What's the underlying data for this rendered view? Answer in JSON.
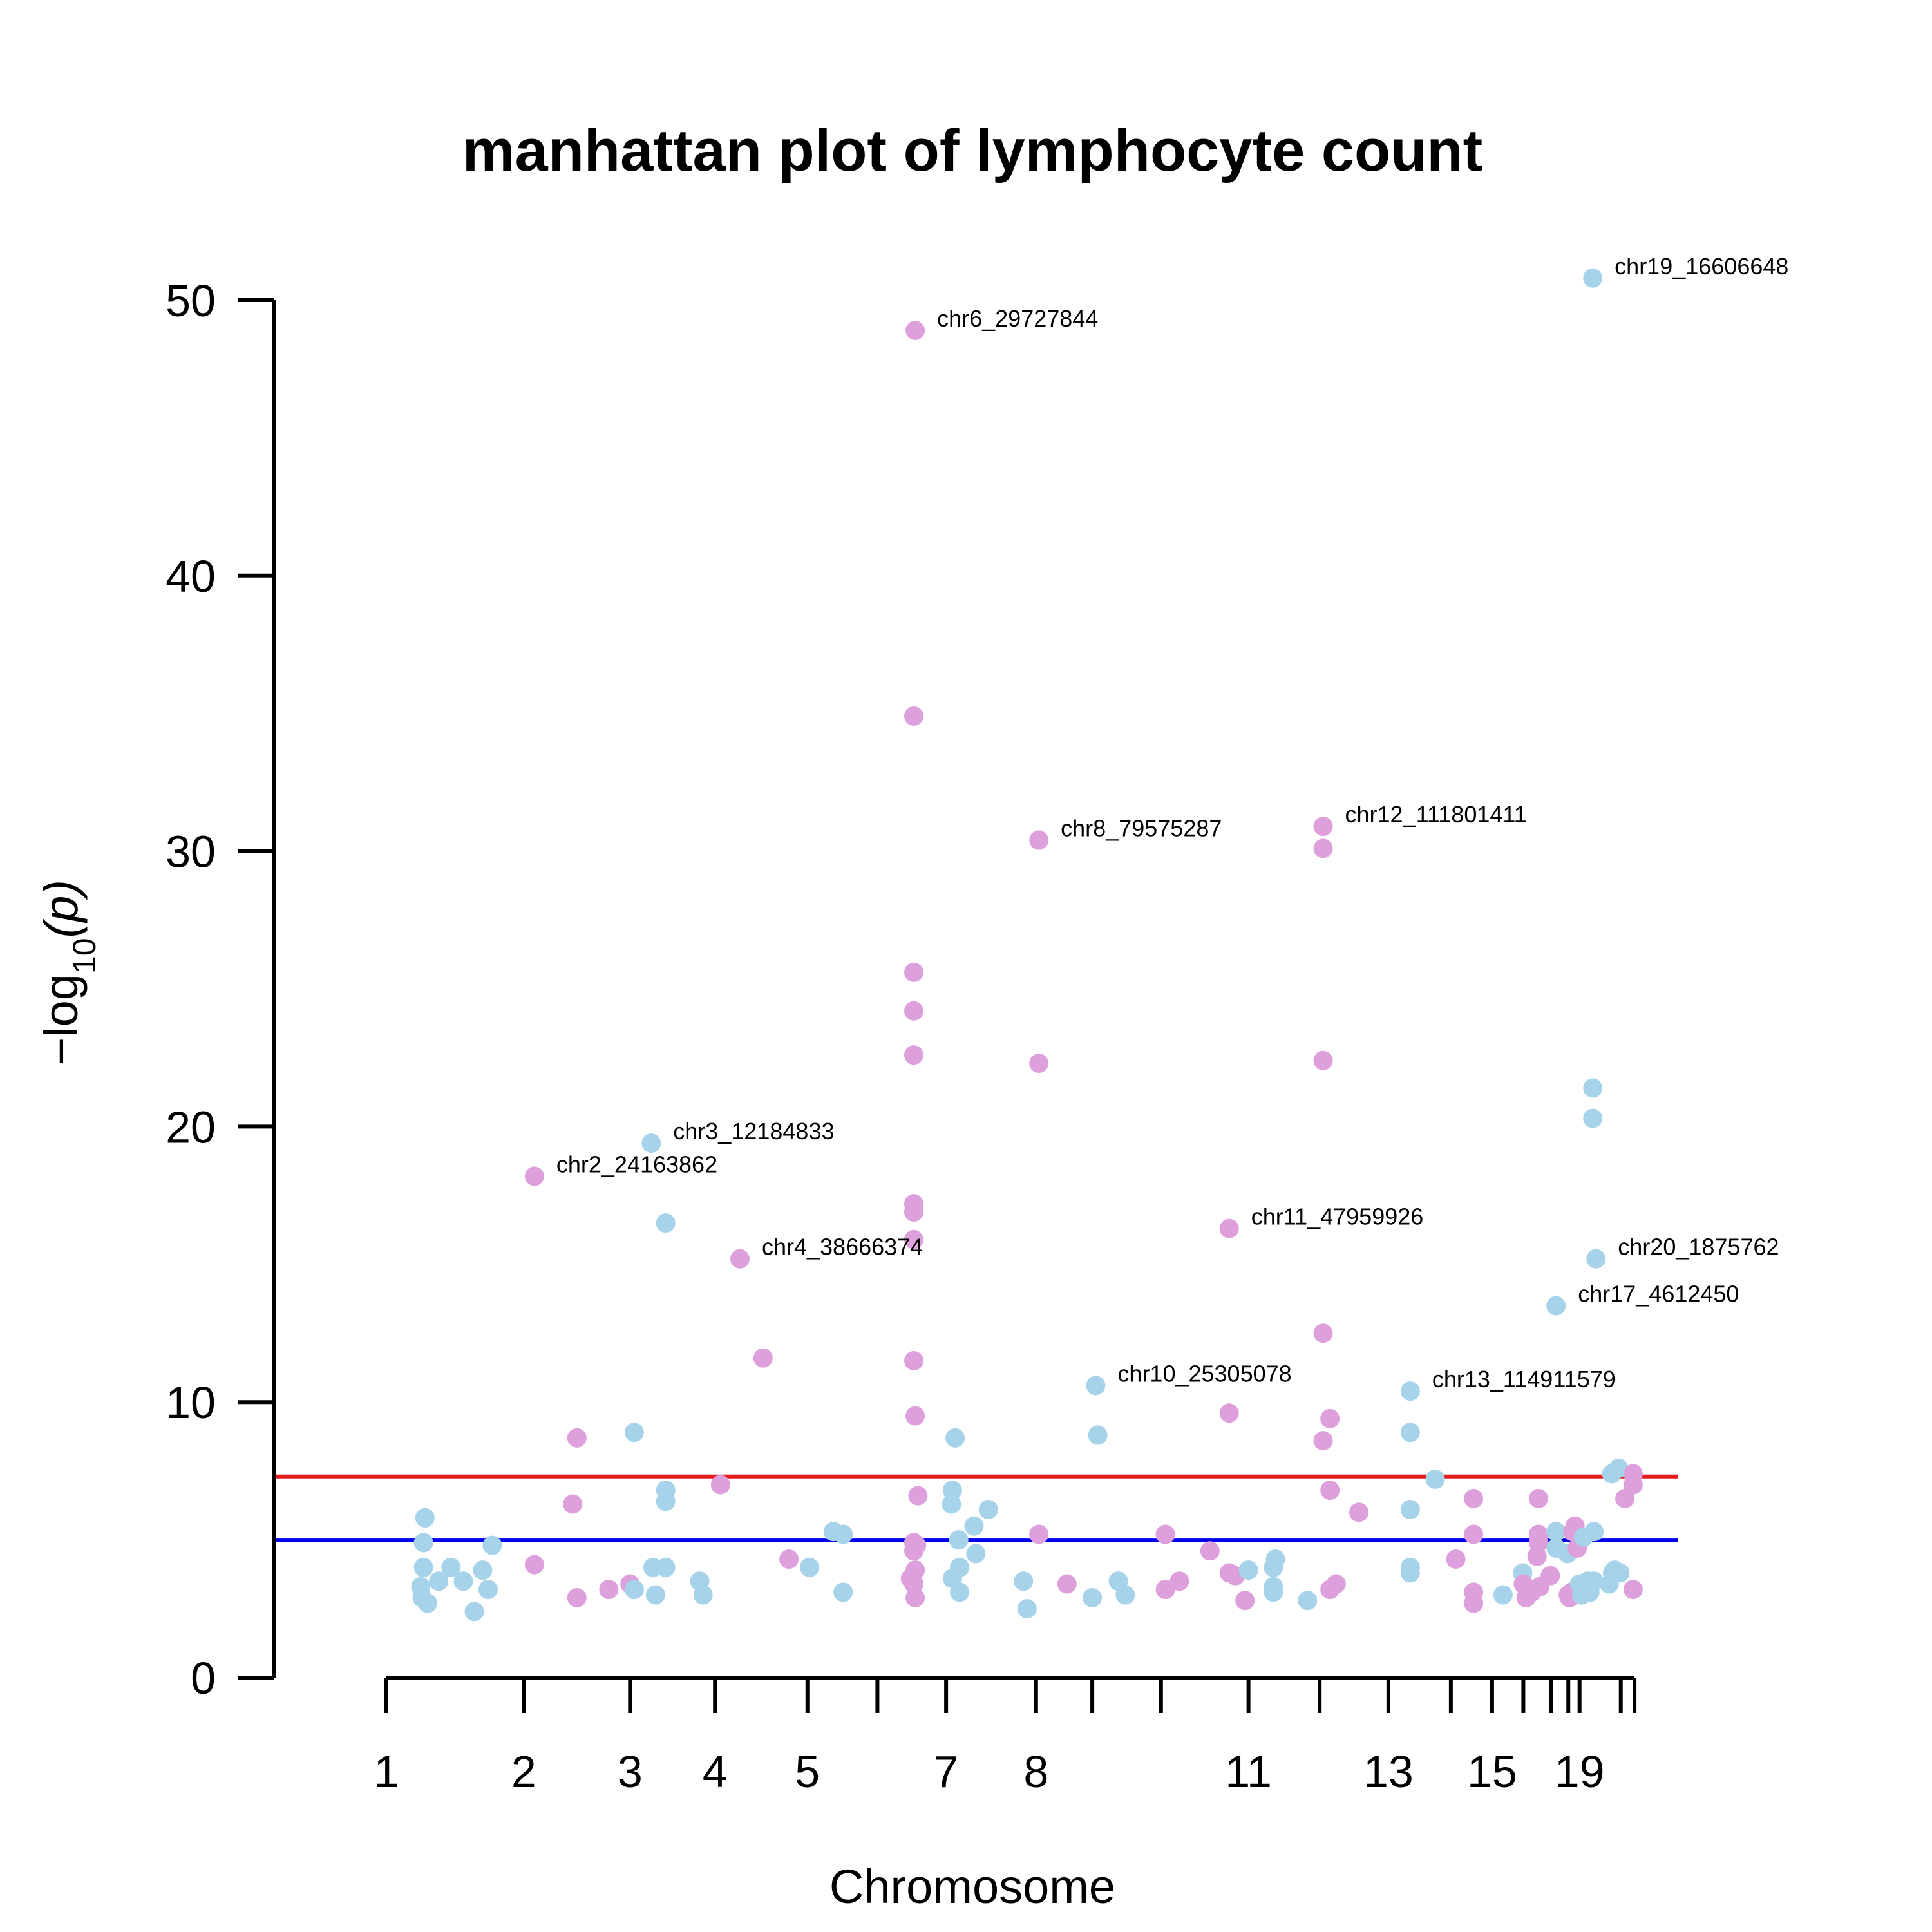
{
  "chart_data": {
    "type": "scatter",
    "title": "manhattan plot of lymphocyte count",
    "xlabel": "Chromosome",
    "ylabel": "−log10(p)",
    "ylabel_parts": {
      "prefix": "−log",
      "subscript": "10",
      "suffix": "(p)"
    },
    "ylim": [
      0,
      50
    ],
    "yticks": [
      0,
      10,
      20,
      30,
      40,
      50
    ],
    "x_tick_labels": [
      "1",
      "2",
      "3",
      "4",
      "5",
      "7",
      "8",
      "11",
      "13",
      "15",
      "19"
    ],
    "colors": {
      "odd": "#a6d3ea",
      "even": "#dda0dd",
      "genomewide_line": "#e41a1c",
      "suggestive_line": "#0000ee"
    },
    "thresholds": {
      "genomewide": 7.3,
      "suggestive": 5
    },
    "chromosomes": [
      {
        "chr": 1,
        "start": 0.0,
        "end": 0.11,
        "tick_label": "1"
      },
      {
        "chr": 2,
        "start": 0.11,
        "end": 0.195,
        "tick_label": "2"
      },
      {
        "chr": 3,
        "start": 0.195,
        "end": 0.263,
        "tick_label": "3"
      },
      {
        "chr": 4,
        "start": 0.263,
        "end": 0.337,
        "tick_label": "4"
      },
      {
        "chr": 5,
        "start": 0.337,
        "end": 0.393,
        "tick_label": "5"
      },
      {
        "chr": 6,
        "start": 0.393,
        "end": 0.448,
        "tick_label": ""
      },
      {
        "chr": 7,
        "start": 0.448,
        "end": 0.52,
        "tick_label": "7"
      },
      {
        "chr": 8,
        "start": 0.52,
        "end": 0.565,
        "tick_label": "8"
      },
      {
        "chr": 9,
        "start": 0.565,
        "end": 0.62,
        "tick_label": ""
      },
      {
        "chr": 10,
        "start": 0.62,
        "end": 0.69,
        "tick_label": ""
      },
      {
        "chr": 11,
        "start": 0.69,
        "end": 0.747,
        "tick_label": "11"
      },
      {
        "chr": 12,
        "start": 0.747,
        "end": 0.802,
        "tick_label": ""
      },
      {
        "chr": 13,
        "start": 0.802,
        "end": 0.852,
        "tick_label": "13"
      },
      {
        "chr": 14,
        "start": 0.852,
        "end": 0.885,
        "tick_label": ""
      },
      {
        "chr": 15,
        "start": 0.885,
        "end": 0.91,
        "tick_label": "15"
      },
      {
        "chr": 16,
        "start": 0.91,
        "end": 0.932,
        "tick_label": ""
      },
      {
        "chr": 17,
        "start": 0.932,
        "end": 0.946,
        "tick_label": ""
      },
      {
        "chr": 18,
        "start": 0.946,
        "end": 0.955,
        "tick_label": ""
      },
      {
        "chr": 19,
        "start": 0.955,
        "end": 0.988,
        "tick_label": "19"
      },
      {
        "chr": 20,
        "start": 0.988,
        "end": 0.999,
        "tick_label": ""
      }
    ],
    "points": [
      {
        "chr": 1,
        "pos": 0.28,
        "p": 5.8
      },
      {
        "chr": 1,
        "pos": 0.27,
        "p": 4.9
      },
      {
        "chr": 1,
        "pos": 0.27,
        "p": 4.0
      },
      {
        "chr": 1,
        "pos": 0.25,
        "p": 3.3
      },
      {
        "chr": 1,
        "pos": 0.26,
        "p": 2.9
      },
      {
        "chr": 1,
        "pos": 0.3,
        "p": 2.7
      },
      {
        "chr": 1,
        "pos": 0.38,
        "p": 3.5
      },
      {
        "chr": 1,
        "pos": 0.47,
        "p": 4.0
      },
      {
        "chr": 1,
        "pos": 0.56,
        "p": 3.5
      },
      {
        "chr": 1,
        "pos": 0.64,
        "p": 2.4
      },
      {
        "chr": 1,
        "pos": 0.7,
        "p": 3.9
      },
      {
        "chr": 1,
        "pos": 0.74,
        "p": 3.2
      },
      {
        "chr": 1,
        "pos": 0.77,
        "p": 4.8
      },
      {
        "chr": 2,
        "pos": 0.1,
        "p": 18.2
      },
      {
        "chr": 2,
        "pos": 0.1,
        "p": 4.1
      },
      {
        "chr": 2,
        "pos": 0.46,
        "p": 6.3
      },
      {
        "chr": 2,
        "pos": 0.5,
        "p": 8.7
      },
      {
        "chr": 2,
        "pos": 0.5,
        "p": 2.9
      },
      {
        "chr": 2,
        "pos": 0.8,
        "p": 3.2
      },
      {
        "chr": 2,
        "pos": 1.0,
        "p": 3.4
      },
      {
        "chr": 3,
        "pos": 0.05,
        "p": 8.9
      },
      {
        "chr": 3,
        "pos": 0.05,
        "p": 3.2
      },
      {
        "chr": 3,
        "pos": 0.25,
        "p": 19.4
      },
      {
        "chr": 3,
        "pos": 0.27,
        "p": 4.0
      },
      {
        "chr": 3,
        "pos": 0.3,
        "p": 3.0
      },
      {
        "chr": 3,
        "pos": 0.42,
        "p": 16.5
      },
      {
        "chr": 3,
        "pos": 0.42,
        "p": 6.8
      },
      {
        "chr": 3,
        "pos": 0.42,
        "p": 6.4
      },
      {
        "chr": 3,
        "pos": 0.42,
        "p": 4.0
      },
      {
        "chr": 3,
        "pos": 0.82,
        "p": 3.5
      },
      {
        "chr": 3,
        "pos": 0.86,
        "p": 3.0
      },
      {
        "chr": 4,
        "pos": 0.06,
        "p": 7.0
      },
      {
        "chr": 4,
        "pos": 0.27,
        "p": 15.2
      },
      {
        "chr": 4,
        "pos": 0.52,
        "p": 11.6
      },
      {
        "chr": 4,
        "pos": 0.8,
        "p": 4.3
      },
      {
        "chr": 5,
        "pos": 0.03,
        "p": 4.0
      },
      {
        "chr": 5,
        "pos": 0.37,
        "p": 5.3
      },
      {
        "chr": 5,
        "pos": 0.51,
        "p": 5.2
      },
      {
        "chr": 5,
        "pos": 0.51,
        "p": 3.1
      },
      {
        "chr": 6,
        "pos": 0.55,
        "p": 48.9
      },
      {
        "chr": 6,
        "pos": 0.53,
        "p": 34.9
      },
      {
        "chr": 6,
        "pos": 0.53,
        "p": 25.6
      },
      {
        "chr": 6,
        "pos": 0.53,
        "p": 24.2
      },
      {
        "chr": 6,
        "pos": 0.53,
        "p": 22.6
      },
      {
        "chr": 6,
        "pos": 0.53,
        "p": 17.2
      },
      {
        "chr": 6,
        "pos": 0.53,
        "p": 16.9
      },
      {
        "chr": 6,
        "pos": 0.53,
        "p": 15.9
      },
      {
        "chr": 6,
        "pos": 0.53,
        "p": 11.5
      },
      {
        "chr": 6,
        "pos": 0.55,
        "p": 9.5
      },
      {
        "chr": 6,
        "pos": 0.59,
        "p": 6.6
      },
      {
        "chr": 6,
        "pos": 0.53,
        "p": 4.9
      },
      {
        "chr": 6,
        "pos": 0.57,
        "p": 4.8
      },
      {
        "chr": 6,
        "pos": 0.53,
        "p": 4.6
      },
      {
        "chr": 6,
        "pos": 0.48,
        "p": 3.6
      },
      {
        "chr": 6,
        "pos": 0.55,
        "p": 3.9
      },
      {
        "chr": 6,
        "pos": 0.53,
        "p": 3.4
      },
      {
        "chr": 6,
        "pos": 0.55,
        "p": 2.9
      },
      {
        "chr": 7,
        "pos": 0.1,
        "p": 8.7
      },
      {
        "chr": 7,
        "pos": 0.07,
        "p": 6.8
      },
      {
        "chr": 7,
        "pos": 0.06,
        "p": 6.3
      },
      {
        "chr": 7,
        "pos": 0.14,
        "p": 5.0
      },
      {
        "chr": 7,
        "pos": 0.15,
        "p": 4.0
      },
      {
        "chr": 7,
        "pos": 0.07,
        "p": 3.6
      },
      {
        "chr": 7,
        "pos": 0.15,
        "p": 3.1
      },
      {
        "chr": 7,
        "pos": 0.31,
        "p": 5.5
      },
      {
        "chr": 7,
        "pos": 0.33,
        "p": 4.5
      },
      {
        "chr": 7,
        "pos": 0.47,
        "p": 6.1
      },
      {
        "chr": 7,
        "pos": 0.86,
        "p": 3.5
      },
      {
        "chr": 7,
        "pos": 0.9,
        "p": 2.5
      },
      {
        "chr": 8,
        "pos": 0.05,
        "p": 30.4
      },
      {
        "chr": 8,
        "pos": 0.05,
        "p": 22.3
      },
      {
        "chr": 8,
        "pos": 0.05,
        "p": 5.2
      },
      {
        "chr": 8,
        "pos": 0.55,
        "p": 3.4
      },
      {
        "chr": 9,
        "pos": 0.0,
        "p": 2.9
      },
      {
        "chr": 9,
        "pos": 0.05,
        "p": 10.6
      },
      {
        "chr": 9,
        "pos": 0.08,
        "p": 8.8
      },
      {
        "chr": 9,
        "pos": 0.38,
        "p": 3.5
      },
      {
        "chr": 9,
        "pos": 0.48,
        "p": 3.0
      },
      {
        "chr": 10,
        "pos": 0.05,
        "p": 5.2
      },
      {
        "chr": 10,
        "pos": 0.05,
        "p": 3.2
      },
      {
        "chr": 10,
        "pos": 0.21,
        "p": 3.5
      },
      {
        "chr": 10,
        "pos": 0.56,
        "p": 4.6
      },
      {
        "chr": 10,
        "pos": 0.78,
        "p": 3.8
      },
      {
        "chr": 10,
        "pos": 0.85,
        "p": 3.7
      },
      {
        "chr": 10,
        "pos": 0.78,
        "p": 16.3
      },
      {
        "chr": 10,
        "pos": 0.78,
        "p": 9.6
      },
      {
        "chr": 10,
        "pos": 0.96,
        "p": 2.8
      },
      {
        "chr": 11,
        "pos": 0.0,
        "p": 3.9
      },
      {
        "chr": 11,
        "pos": 0.35,
        "p": 4.0
      },
      {
        "chr": 11,
        "pos": 0.38,
        "p": 4.3
      },
      {
        "chr": 11,
        "pos": 0.35,
        "p": 3.3
      },
      {
        "chr": 11,
        "pos": 0.35,
        "p": 3.1
      },
      {
        "chr": 11,
        "pos": 0.83,
        "p": 2.8
      },
      {
        "chr": 12,
        "pos": 0.05,
        "p": 30.9
      },
      {
        "chr": 12,
        "pos": 0.05,
        "p": 30.1
      },
      {
        "chr": 12,
        "pos": 0.05,
        "p": 22.4
      },
      {
        "chr": 12,
        "pos": 0.05,
        "p": 12.5
      },
      {
        "chr": 12,
        "pos": 0.15,
        "p": 9.4
      },
      {
        "chr": 12,
        "pos": 0.05,
        "p": 8.6
      },
      {
        "chr": 12,
        "pos": 0.15,
        "p": 6.8
      },
      {
        "chr": 12,
        "pos": 0.15,
        "p": 3.2
      },
      {
        "chr": 12,
        "pos": 0.24,
        "p": 3.4
      },
      {
        "chr": 12,
        "pos": 0.57,
        "p": 6.0
      },
      {
        "chr": 13,
        "pos": 0.35,
        "p": 10.4
      },
      {
        "chr": 13,
        "pos": 0.35,
        "p": 8.9
      },
      {
        "chr": 13,
        "pos": 0.35,
        "p": 6.1
      },
      {
        "chr": 13,
        "pos": 0.35,
        "p": 4.0
      },
      {
        "chr": 13,
        "pos": 0.35,
        "p": 3.8
      },
      {
        "chr": 13,
        "pos": 0.75,
        "p": 7.2
      },
      {
        "chr": 14,
        "pos": 0.12,
        "p": 4.3
      },
      {
        "chr": 14,
        "pos": 0.55,
        "p": 6.5
      },
      {
        "chr": 14,
        "pos": 0.55,
        "p": 5.2
      },
      {
        "chr": 14,
        "pos": 0.55,
        "p": 3.1
      },
      {
        "chr": 14,
        "pos": 0.55,
        "p": 2.7
      },
      {
        "chr": 15,
        "pos": 0.35,
        "p": 3.0
      },
      {
        "chr": 15,
        "pos": 0.98,
        "p": 3.8
      },
      {
        "chr": 16,
        "pos": 0.0,
        "p": 3.4
      },
      {
        "chr": 16,
        "pos": 0.1,
        "p": 2.9
      },
      {
        "chr": 16,
        "pos": 0.3,
        "p": 3.1
      },
      {
        "chr": 16,
        "pos": 0.4,
        "p": 3.2
      },
      {
        "chr": 16,
        "pos": 0.5,
        "p": 4.4
      },
      {
        "chr": 16,
        "pos": 0.55,
        "p": 6.5
      },
      {
        "chr": 16,
        "pos": 0.55,
        "p": 5.2
      },
      {
        "chr": 16,
        "pos": 0.55,
        "p": 4.9
      },
      {
        "chr": 16,
        "pos": 0.6,
        "p": 3.3
      },
      {
        "chr": 16,
        "pos": 0.98,
        "p": 3.7
      },
      {
        "chr": 17,
        "pos": 0.3,
        "p": 13.5
      },
      {
        "chr": 17,
        "pos": 0.3,
        "p": 5.3
      },
      {
        "chr": 17,
        "pos": 0.3,
        "p": 4.7
      },
      {
        "chr": 17,
        "pos": 0.95,
        "p": 4.5
      },
      {
        "chr": 18,
        "pos": 0.0,
        "p": 3.0
      },
      {
        "chr": 18,
        "pos": 0.1,
        "p": 2.9
      },
      {
        "chr": 18,
        "pos": 0.3,
        "p": 3.1
      },
      {
        "chr": 18,
        "pos": 0.4,
        "p": 5.3
      },
      {
        "chr": 18,
        "pos": 0.6,
        "p": 5.5
      },
      {
        "chr": 18,
        "pos": 0.8,
        "p": 4.7
      },
      {
        "chr": 18,
        "pos": 0.9,
        "p": 3.2
      },
      {
        "chr": 19,
        "pos": 0.0,
        "p": 3.4
      },
      {
        "chr": 19,
        "pos": 0.05,
        "p": 3.0
      },
      {
        "chr": 19,
        "pos": 0.1,
        "p": 5.1
      },
      {
        "chr": 19,
        "pos": 0.2,
        "p": 3.5
      },
      {
        "chr": 19,
        "pos": 0.25,
        "p": 3.1
      },
      {
        "chr": 19,
        "pos": 0.32,
        "p": 50.8
      },
      {
        "chr": 19,
        "pos": 0.32,
        "p": 21.4
      },
      {
        "chr": 19,
        "pos": 0.32,
        "p": 20.3
      },
      {
        "chr": 19,
        "pos": 0.35,
        "p": 5.3
      },
      {
        "chr": 19,
        "pos": 0.35,
        "p": 3.5
      },
      {
        "chr": 19,
        "pos": 0.4,
        "p": 15.2
      },
      {
        "chr": 19,
        "pos": 0.78,
        "p": 7.4
      },
      {
        "chr": 19,
        "pos": 0.72,
        "p": 3.4
      },
      {
        "chr": 19,
        "pos": 0.8,
        "p": 3.8
      },
      {
        "chr": 19,
        "pos": 0.85,
        "p": 3.9
      },
      {
        "chr": 19,
        "pos": 0.95,
        "p": 7.6
      },
      {
        "chr": 19,
        "pos": 0.98,
        "p": 3.8
      },
      {
        "chr": 20,
        "pos": 0.3,
        "p": 6.5
      },
      {
        "chr": 20,
        "pos": 0.9,
        "p": 7.4
      },
      {
        "chr": 20,
        "pos": 0.9,
        "p": 7.0
      },
      {
        "chr": 20,
        "pos": 0.9,
        "p": 3.2
      }
    ],
    "annotations": [
      {
        "text": "chr19_16606648",
        "chr": 19,
        "pos": 0.32,
        "p": 50.8
      },
      {
        "text": "chr6_29727844",
        "chr": 6,
        "pos": 0.55,
        "p": 48.9
      },
      {
        "text": "chr8_79575287",
        "chr": 8,
        "pos": 0.05,
        "p": 30.4
      },
      {
        "text": "chr12_111801411",
        "chr": 12,
        "pos": 0.05,
        "p": 30.9
      },
      {
        "text": "chr3_12184833",
        "chr": 3,
        "pos": 0.25,
        "p": 19.4
      },
      {
        "text": "chr2_24163862",
        "chr": 2,
        "pos": 0.1,
        "p": 18.2
      },
      {
        "text": "chr4_38666374",
        "chr": 4,
        "pos": 0.27,
        "p": 15.2
      },
      {
        "text": "chr11_47959926",
        "chr": 10,
        "pos": 0.78,
        "p": 16.3
      },
      {
        "text": "chr20_1875762",
        "chr": 19,
        "pos": 0.4,
        "p": 15.2
      },
      {
        "text": "chr17_4612450",
        "chr": 17,
        "pos": 0.3,
        "p": 13.5
      },
      {
        "text": "chr10_25305078",
        "chr": 9,
        "pos": 0.05,
        "p": 10.6
      },
      {
        "text": "chr13_114911579",
        "chr": 13,
        "pos": 0.35,
        "p": 10.4
      }
    ]
  }
}
